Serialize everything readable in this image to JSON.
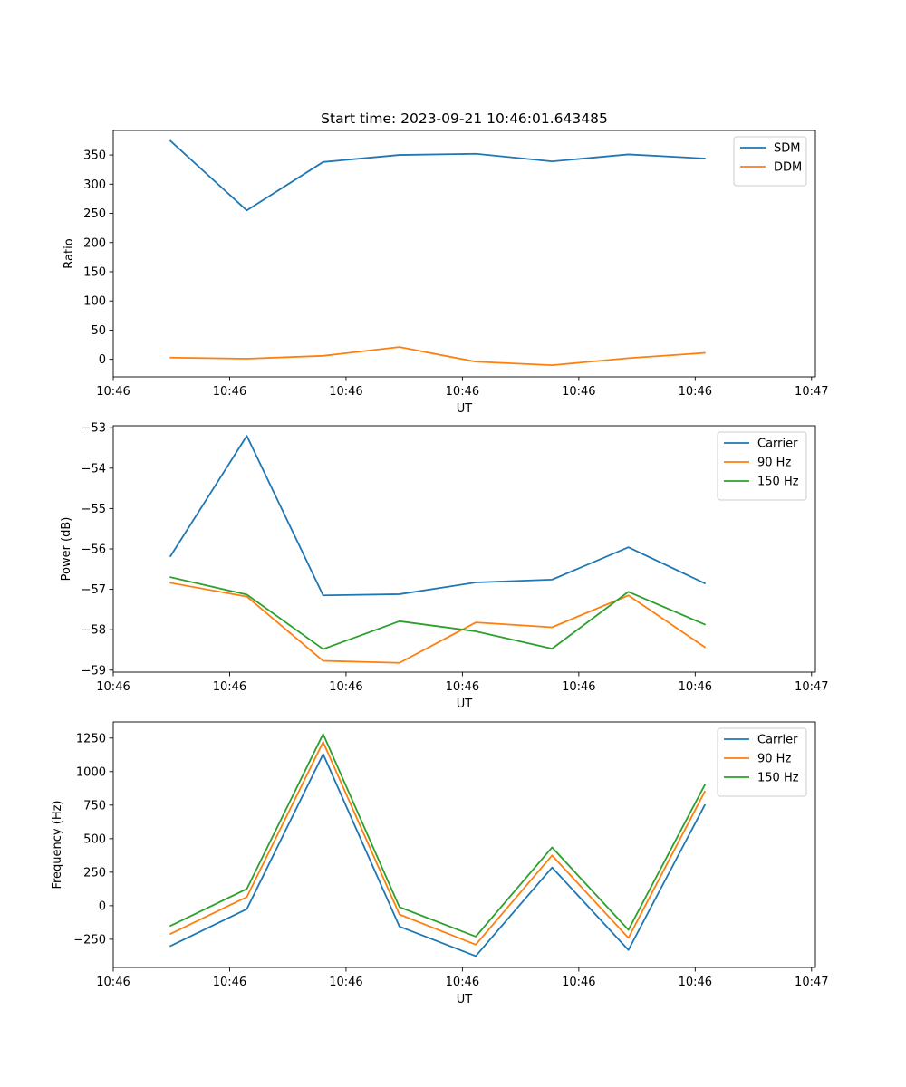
{
  "figure": {
    "title": "Start time: 2023-09-21 10:46:01.643485"
  },
  "colors": {
    "blue": "#1f77b4",
    "orange": "#ff7f0e",
    "green": "#2ca02c"
  },
  "chart_data": [
    {
      "type": "line",
      "title": "Start time: 2023-09-21 10:46:01.643485",
      "xlabel": "UT",
      "ylabel": "Ratio",
      "x": [
        0,
        1,
        2,
        3,
        4,
        5,
        6,
        7
      ],
      "xlim": [
        -0.75,
        8.45
      ],
      "xticks": [
        -0.75,
        0.775,
        2.3,
        3.825,
        5.35,
        6.875,
        8.4
      ],
      "xtick_labels": [
        "10:46",
        "10:46",
        "10:46",
        "10:46",
        "10:46",
        "10:46",
        "10:47"
      ],
      "ylim": [
        -30,
        392
      ],
      "yticks": [
        0,
        50,
        100,
        150,
        200,
        250,
        300,
        350
      ],
      "ytick_labels": [
        "0",
        "50",
        "100",
        "150",
        "200",
        "250",
        "300",
        "350"
      ],
      "legend_position": "top-right",
      "series": [
        {
          "name": "SDM",
          "color": "#1f77b4",
          "values": [
            374,
            255,
            338,
            350,
            352,
            339,
            351,
            344
          ]
        },
        {
          "name": "DDM",
          "color": "#ff7f0e",
          "values": [
            3,
            1,
            6,
            21,
            -4,
            -10,
            2,
            11
          ]
        }
      ]
    },
    {
      "type": "line",
      "title": "",
      "xlabel": "UT",
      "ylabel": "Power (dB)",
      "x": [
        0,
        1,
        2,
        3,
        4,
        5,
        6,
        7
      ],
      "xlim": [
        -0.75,
        8.45
      ],
      "xticks": [
        -0.75,
        0.775,
        2.3,
        3.825,
        5.35,
        6.875,
        8.4
      ],
      "xtick_labels": [
        "10:46",
        "10:46",
        "10:46",
        "10:46",
        "10:46",
        "10:46",
        "10:47"
      ],
      "ylim": [
        -59.05,
        -52.95
      ],
      "yticks": [
        -59,
        -58,
        -57,
        -56,
        -55,
        -54,
        -53
      ],
      "ytick_labels": [
        "−59",
        "−58",
        "−57",
        "−56",
        "−55",
        "−54",
        "−53"
      ],
      "legend_position": "top-right",
      "series": [
        {
          "name": "Carrier",
          "color": "#1f77b4",
          "values": [
            -56.18,
            -53.2,
            -57.15,
            -57.12,
            -56.83,
            -56.76,
            -55.96,
            -56.85
          ]
        },
        {
          "name": "90 Hz",
          "color": "#ff7f0e",
          "values": [
            -56.84,
            -57.18,
            -58.77,
            -58.82,
            -57.82,
            -57.94,
            -57.15,
            -58.43
          ]
        },
        {
          "name": "150 Hz",
          "color": "#2ca02c",
          "values": [
            -56.7,
            -57.13,
            -58.48,
            -57.79,
            -58.04,
            -58.47,
            -57.06,
            -57.87
          ]
        }
      ]
    },
    {
      "type": "line",
      "title": "",
      "xlabel": "UT",
      "ylabel": "Frequency (Hz)",
      "x": [
        0,
        1,
        2,
        3,
        4,
        5,
        6,
        7
      ],
      "xlim": [
        -0.75,
        8.45
      ],
      "xticks": [
        -0.75,
        0.775,
        2.3,
        3.825,
        5.35,
        6.875,
        8.4
      ],
      "xtick_labels": [
        "10:46",
        "10:46",
        "10:46",
        "10:46",
        "10:46",
        "10:46",
        "10:47"
      ],
      "ylim": [
        -460,
        1370
      ],
      "yticks": [
        -250,
        0,
        250,
        500,
        750,
        1000,
        1250
      ],
      "ytick_labels": [
        "−250",
        "0",
        "250",
        "500",
        "750",
        "1000",
        "1250"
      ],
      "legend_position": "top-right",
      "series": [
        {
          "name": "Carrier",
          "color": "#1f77b4",
          "values": [
            -300,
            -25,
            1130,
            -155,
            -375,
            285,
            -330,
            750
          ]
        },
        {
          "name": "90 Hz",
          "color": "#ff7f0e",
          "values": [
            -210,
            65,
            1220,
            -65,
            -290,
            375,
            -240,
            850
          ]
        },
        {
          "name": "150 Hz",
          "color": "#2ca02c",
          "values": [
            -150,
            125,
            1280,
            -10,
            -230,
            435,
            -180,
            900
          ]
        }
      ]
    }
  ]
}
